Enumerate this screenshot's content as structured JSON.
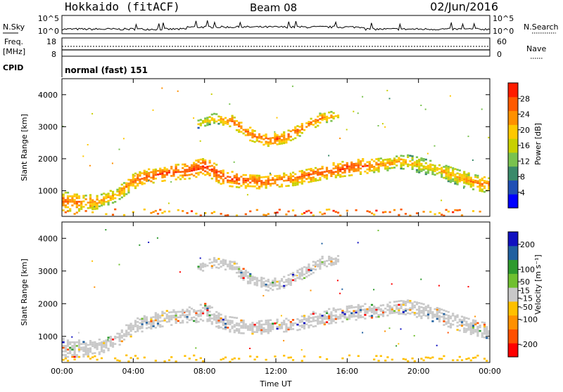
{
  "header": {
    "station": "Hokkaido (fitACF)",
    "beam": "Beam 08",
    "date": "02/Jun/2016"
  },
  "noise_panel": {
    "left_label": "N.Sky",
    "right_label": "N.Search",
    "ticks_left": [
      "10^5",
      "10^0"
    ],
    "ticks_right": [
      "10^5",
      "10^0"
    ]
  },
  "freq_panel": {
    "left_label_1": "Freq.",
    "left_label_2": "[MHz]",
    "right_label": "Nave",
    "ticks_left": [
      "18",
      "8"
    ],
    "ticks_right": [
      "60",
      "0"
    ]
  },
  "cpid_panel": {
    "label": "CPID",
    "value": "normal (fast) 151"
  },
  "chart_data": [
    {
      "type": "heatmap",
      "quantity": "power",
      "ylabel": "Slant Range [km]",
      "xlabel": "",
      "x_ticks": [
        "00:00",
        "04:00",
        "08:00",
        "12:00",
        "16:00",
        "20:00",
        "00:00"
      ],
      "y_ticks": [
        1000,
        2000,
        3000,
        4000
      ],
      "ylim": [
        200,
        4500
      ],
      "xlim_hours": [
        0,
        24
      ],
      "colorbar": {
        "label": "Power [dB]",
        "ticks": [
          4,
          8,
          12,
          16,
          20,
          24,
          28
        ],
        "range": [
          0,
          32
        ],
        "colors": [
          "#0000ff",
          "#1f4fb5",
          "#3a8a6a",
          "#79c24f",
          "#c8d000",
          "#ffc800",
          "#ff9000",
          "#ff5a00",
          "#ff1c00"
        ]
      },
      "bands": [
        {
          "name": "main_echo",
          "x": [
            0,
            1,
            2,
            3,
            4,
            5,
            6,
            7,
            8,
            9,
            10,
            11,
            12,
            13,
            14,
            15,
            16,
            17,
            18,
            19,
            20,
            21,
            22,
            23,
            24
          ],
          "center_km": [
            700,
            650,
            700,
            900,
            1350,
            1500,
            1600,
            1650,
            1800,
            1450,
            1350,
            1300,
            1350,
            1400,
            1550,
            1650,
            1750,
            1800,
            1850,
            1950,
            1850,
            1700,
            1500,
            1300,
            1200
          ],
          "width_km": [
            600,
            500,
            450,
            400,
            500,
            450,
            450,
            500,
            550,
            500,
            450,
            400,
            400,
            400,
            450,
            450,
            500,
            450,
            400,
            450,
            500,
            500,
            500,
            450,
            500
          ],
          "level_db": [
            26,
            25,
            24,
            22,
            26,
            27,
            28,
            28,
            29,
            28,
            28,
            27,
            27,
            26,
            27,
            27,
            28,
            27,
            24,
            22,
            20,
            20,
            22,
            24,
            25
          ]
        },
        {
          "name": "upper_echo",
          "x": [
            7.5,
            8.5,
            9.5,
            10.5,
            11.5,
            12.5,
            13.5,
            14.5,
            15.5
          ],
          "center_km": [
            3100,
            3300,
            3200,
            2800,
            2600,
            2700,
            3000,
            3300,
            3400
          ],
          "width_km": [
            250,
            300,
            350,
            400,
            350,
            350,
            400,
            350,
            250
          ],
          "level_db": [
            18,
            22,
            26,
            26,
            27,
            27,
            26,
            24,
            20
          ]
        }
      ]
    },
    {
      "type": "heatmap",
      "quantity": "velocity",
      "ylabel": "Slant Range [km]",
      "xlabel": "Time UT",
      "x_ticks": [
        "00:00",
        "04:00",
        "08:00",
        "12:00",
        "16:00",
        "20:00",
        "00:00"
      ],
      "y_ticks": [
        1000,
        2000,
        3000,
        4000
      ],
      "ylim": [
        200,
        4500
      ],
      "xlim_hours": [
        0,
        24
      ],
      "colorbar": {
        "label": "Velocity [m s⁻¹]",
        "ticks": [
          200,
          100,
          50,
          15,
          -15,
          -50,
          -100,
          -200
        ],
        "range": [
          -250,
          250
        ],
        "colors": [
          "#ff0000",
          "#ff5000",
          "#ff9000",
          "#ffc000",
          "#c8c8c8",
          "#70c030",
          "#2e9a2e",
          "#2060a0",
          "#1010c0"
        ]
      },
      "dominant_value": "near zero (gray, ground scatter)"
    }
  ]
}
